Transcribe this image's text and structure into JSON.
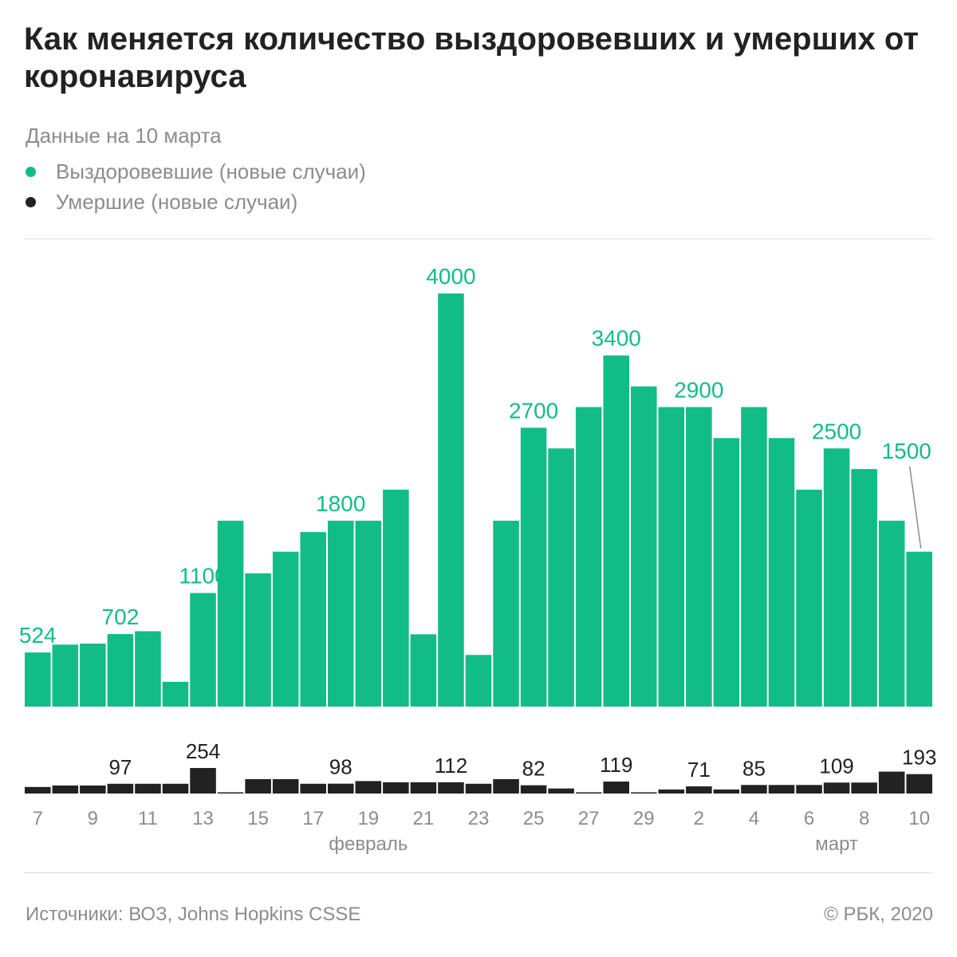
{
  "header": {
    "title": "Как меняется количество выздоровевших и умерших от коронавируса",
    "subtitle": "Данные на 10 марта"
  },
  "legend": [
    {
      "label": "Выздоровевшие (новые случаи)",
      "color": "#12bc87"
    },
    {
      "label": "Умершие (новые случаи)",
      "color": "#222222"
    }
  ],
  "chart_data": {
    "type": "bar",
    "categories": [
      "7",
      "8",
      "9",
      "10",
      "11",
      "12",
      "13",
      "14",
      "15",
      "16",
      "17",
      "18",
      "19",
      "20",
      "21",
      "22",
      "23",
      "24",
      "25",
      "26",
      "27",
      "28",
      "29",
      "1",
      "2",
      "3",
      "4",
      "5",
      "6",
      "7",
      "8",
      "9",
      "10"
    ],
    "x_tick_labels": [
      "7",
      "9",
      "11",
      "13",
      "15",
      "17",
      "19",
      "21",
      "23",
      "25",
      "27",
      "29",
      "2",
      "4",
      "6",
      "8",
      "10"
    ],
    "month_labels": [
      "февраль",
      "март"
    ],
    "series": [
      {
        "name": "Выздоровевшие (новые случаи)",
        "color": "#12bc87",
        "values": [
          524,
          600,
          610,
          702,
          730,
          240,
          1100,
          1800,
          1290,
          1500,
          1690,
          1800,
          1800,
          2100,
          700,
          4000,
          500,
          1800,
          2700,
          2500,
          2900,
          3400,
          3100,
          2900,
          2900,
          2600,
          2900,
          2600,
          2100,
          2500,
          2300,
          1800,
          1500
        ],
        "labels": {
          "0": "524",
          "3": "702",
          "6": "1100",
          "11": "1800",
          "15": "4000",
          "18": "2700",
          "21": "3400",
          "24": "2900",
          "29": "2500",
          "32": "1500"
        },
        "ylim": [
          0,
          4000
        ]
      },
      {
        "name": "Умершие (новые случаи)",
        "color": "#222222",
        "values": [
          65,
          80,
          80,
          97,
          97,
          97,
          254,
          10,
          143,
          143,
          97,
          98,
          124,
          112,
          112,
          112,
          97,
          143,
          82,
          50,
          10,
          119,
          10,
          40,
          71,
          40,
          85,
          85,
          85,
          109,
          109,
          218,
          193
        ],
        "labels": {
          "3": "97",
          "6": "254",
          "11": "98",
          "15": "112",
          "18": "82",
          "21": "119",
          "24": "71",
          "26": "85",
          "29": "109",
          "32": "193"
        },
        "ylim": [
          0,
          254
        ]
      }
    ]
  },
  "footer": {
    "sources": "Источники: ВОЗ, Johns Hopkins CSSE",
    "copyright": "© РБК, 2020"
  }
}
